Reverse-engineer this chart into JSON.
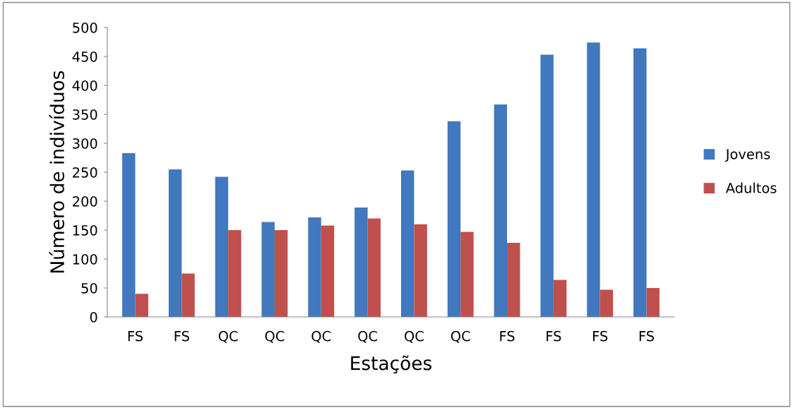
{
  "chart_data": {
    "type": "bar",
    "xlabel": "Estações",
    "ylabel": "Número de indivíduos",
    "categories": [
      "FS",
      "FS",
      "QC",
      "QC",
      "QC",
      "QC",
      "QC",
      "QC",
      "FS",
      "FS",
      "FS",
      "FS"
    ],
    "series": [
      {
        "name": "Jovens",
        "color": "#4178be",
        "values": [
          283,
          255,
          242,
          164,
          172,
          189,
          253,
          338,
          367,
          453,
          474,
          464
        ]
      },
      {
        "name": "Adultos",
        "color": "#c0504d",
        "values": [
          40,
          75,
          150,
          150,
          158,
          170,
          160,
          147,
          128,
          64,
          47,
          50
        ]
      }
    ],
    "ylim": [
      0,
      500
    ],
    "yticks": [
      0,
      50,
      100,
      150,
      200,
      250,
      300,
      350,
      400,
      450,
      500
    ],
    "grid": false,
    "legend": "right"
  }
}
